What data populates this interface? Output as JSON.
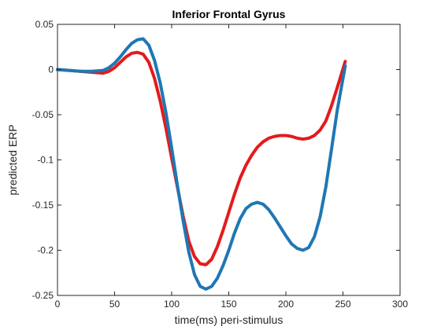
{
  "chart_data": {
    "type": "line",
    "title": "Inferior Frontal Gyrus",
    "xlabel": "time(ms) peri-stimulus",
    "ylabel": "predicted ERP",
    "xlim": [
      0,
      300
    ],
    "ylim": [
      -0.25,
      0.05
    ],
    "xticks": [
      0,
      50,
      100,
      150,
      200,
      250,
      300
    ],
    "xtick_labels": [
      "0",
      "50",
      "100",
      "150",
      "200",
      "250",
      "300"
    ],
    "yticks": [
      0.05,
      0,
      -0.05,
      -0.1,
      -0.15,
      -0.2,
      -0.25
    ],
    "ytick_labels": [
      "0.05",
      "0",
      "-0.05",
      "-0.1",
      "-0.15",
      "-0.2",
      "-0.25"
    ],
    "grid": false,
    "box": true,
    "series": [
      {
        "color": "#e41a1c",
        "x": [
          0,
          10,
          20,
          30,
          40,
          45,
          50,
          55,
          60,
          65,
          70,
          75,
          80,
          85,
          90,
          95,
          100,
          105,
          110,
          115,
          120,
          125,
          130,
          135,
          140,
          145,
          150,
          155,
          160,
          165,
          170,
          175,
          180,
          185,
          190,
          195,
          200,
          205,
          210,
          215,
          220,
          225,
          230,
          235,
          240,
          245,
          252
        ],
        "y": [
          0.0,
          -0.001,
          -0.002,
          -0.003,
          -0.004,
          -0.002,
          0.002,
          0.008,
          0.014,
          0.018,
          0.019,
          0.017,
          0.008,
          -0.01,
          -0.035,
          -0.065,
          -0.098,
          -0.13,
          -0.162,
          -0.19,
          -0.207,
          -0.215,
          -0.216,
          -0.21,
          -0.196,
          -0.178,
          -0.158,
          -0.138,
          -0.12,
          -0.106,
          -0.095,
          -0.086,
          -0.08,
          -0.076,
          -0.074,
          -0.073,
          -0.073,
          -0.074,
          -0.076,
          -0.077,
          -0.076,
          -0.073,
          -0.067,
          -0.057,
          -0.04,
          -0.02,
          0.009
        ]
      },
      {
        "color": "#1f77b4",
        "x": [
          0,
          10,
          20,
          30,
          40,
          45,
          50,
          55,
          60,
          65,
          70,
          75,
          80,
          85,
          90,
          95,
          100,
          105,
          110,
          115,
          120,
          125,
          130,
          135,
          140,
          145,
          150,
          155,
          160,
          165,
          170,
          175,
          180,
          185,
          190,
          195,
          200,
          205,
          210,
          215,
          220,
          225,
          230,
          235,
          240,
          245,
          252
        ],
        "y": [
          0.0,
          -0.001,
          -0.002,
          -0.002,
          -0.001,
          0.002,
          0.007,
          0.014,
          0.022,
          0.029,
          0.033,
          0.034,
          0.027,
          0.01,
          -0.015,
          -0.048,
          -0.087,
          -0.128,
          -0.167,
          -0.202,
          -0.227,
          -0.24,
          -0.243,
          -0.24,
          -0.231,
          -0.217,
          -0.2,
          -0.181,
          -0.165,
          -0.154,
          -0.149,
          -0.147,
          -0.149,
          -0.155,
          -0.164,
          -0.174,
          -0.184,
          -0.193,
          -0.198,
          -0.2,
          -0.197,
          -0.185,
          -0.163,
          -0.13,
          -0.088,
          -0.045,
          0.004
        ]
      }
    ]
  }
}
